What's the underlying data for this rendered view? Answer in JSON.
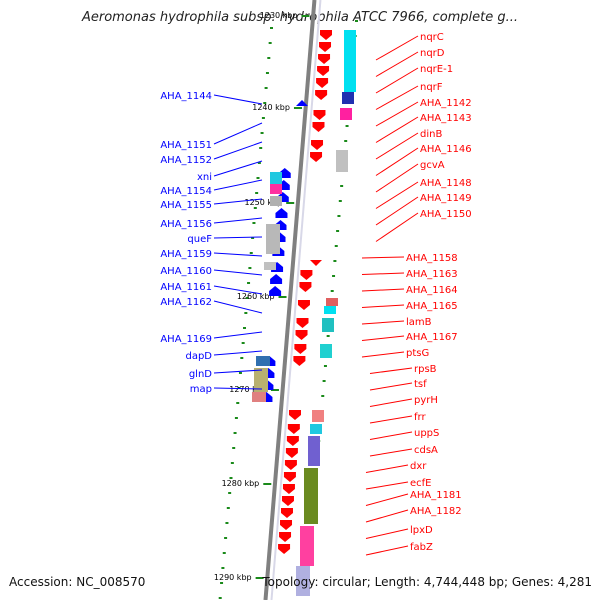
{
  "title": "Aeromonas hydrophila subsp. hydrophila ATCC 7966, complete g...",
  "footer": {
    "accession": "Accession: NC_008570",
    "summary": "Topology: circular; Length: 4,744,448 bp; Genes: 4,281"
  },
  "colors": {
    "forward_strand": "#0000ff",
    "reverse_strand": "#ff0000",
    "backbone": "#808080"
  },
  "ticks": [
    "1230 kbp",
    "1240 kbp",
    "1250 kbp",
    "1260 kbp",
    "1270 kbp",
    "1280 kbp",
    "1290 kbp"
  ],
  "left_labels": [
    "AHA_1144",
    "AHA_1151",
    "AHA_1152",
    "xni",
    "AHA_1154",
    "AHA_1155",
    "AHA_1156",
    "queF",
    "AHA_1159",
    "AHA_1160",
    "AHA_1161",
    "AHA_1162",
    "AHA_1169",
    "dapD",
    "glnD",
    "map"
  ],
  "right_labels": [
    "nqrC",
    "nqrD",
    "nqrE-1",
    "nqrF",
    "AHA_1142",
    "AHA_1143",
    "dinB",
    "AHA_1146",
    "gcvA",
    "AHA_1148",
    "AHA_1149",
    "AHA_1150",
    "AHA_1158",
    "AHA_1163",
    "AHA_1164",
    "AHA_1165",
    "lamB",
    "AHA_1167",
    "ptsG",
    "rpsB",
    "tsf",
    "pyrH",
    "frr",
    "uppS",
    "cdsA",
    "dxr",
    "ecfE",
    "AHA_1181",
    "AHA_1182",
    "lpxD",
    "fabZ"
  ]
}
